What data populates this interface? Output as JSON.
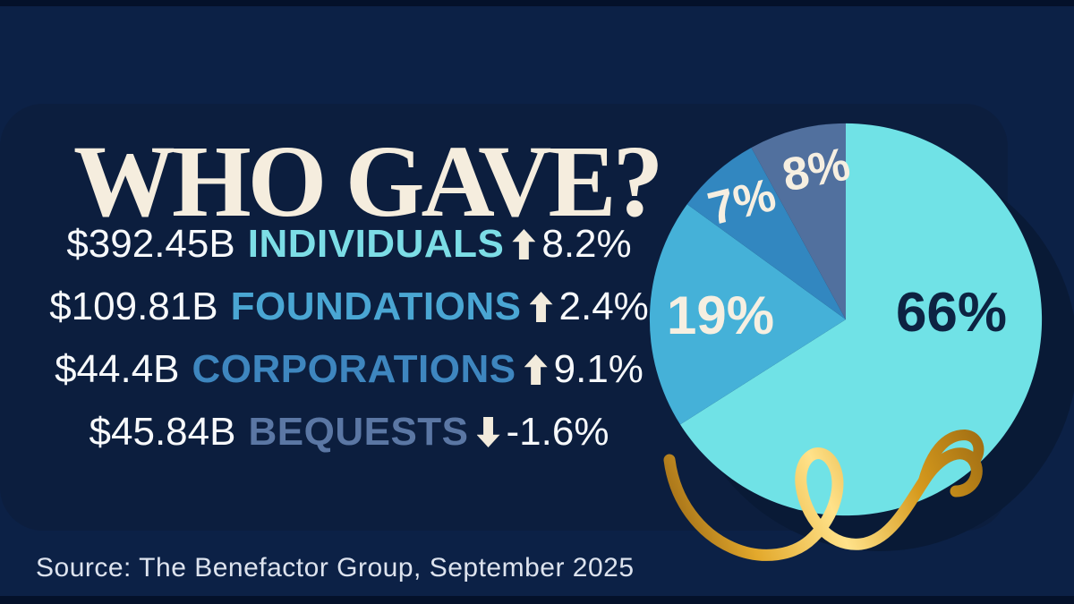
{
  "title": "WHO GAVE?",
  "source": "Source: The Benefactor Group, September 2025",
  "stats": [
    {
      "amount": "$392.45B",
      "category": "INDIVIDUALS",
      "direction": "up",
      "change": "8.2%",
      "color": "#7CDDE6"
    },
    {
      "amount": "$109.81B",
      "category": "FOUNDATIONS",
      "direction": "up",
      "change": "2.4%",
      "color": "#4AA6D3"
    },
    {
      "amount": "$44.4B",
      "category": "CORPORATIONS",
      "direction": "up",
      "change": "9.1%",
      "color": "#3E86BF"
    },
    {
      "amount": "$45.84B",
      "category": "BEQUESTS",
      "direction": "down",
      "change": "-1.6%",
      "color": "#5B77A4"
    }
  ],
  "chart_data": {
    "type": "pie",
    "title": "WHO GAVE?",
    "start_angle_deg": 0,
    "direction": "clockwise",
    "legend_position": "none",
    "slices": [
      {
        "label": "Individuals",
        "value": 66,
        "display": "66%",
        "color": "#70E2E6",
        "label_color": "#0D2342"
      },
      {
        "label": "Foundations",
        "value": 19,
        "display": "19%",
        "color": "#45B1D8",
        "label_color": "#F6EFE1"
      },
      {
        "label": "Corporations",
        "value": 7,
        "display": "7%",
        "color": "#3287C0",
        "label_color": "#F6EFE1"
      },
      {
        "label": "Bequests",
        "value": 8,
        "display": "8%",
        "color": "#51709E",
        "label_color": "#F6EFE1"
      }
    ]
  },
  "colors": {
    "page_bg": "#0C2146",
    "panel": "#0C1E3E",
    "pie_shadow": "#091A36",
    "edge_strip": "#04112A",
    "title_color": "#F5EDDE",
    "text_white": "#F7F9FB",
    "source_color": "#DDE3EE",
    "arrow_color": "#F2EBDC",
    "ribbon_gold": "#E3A92C"
  }
}
